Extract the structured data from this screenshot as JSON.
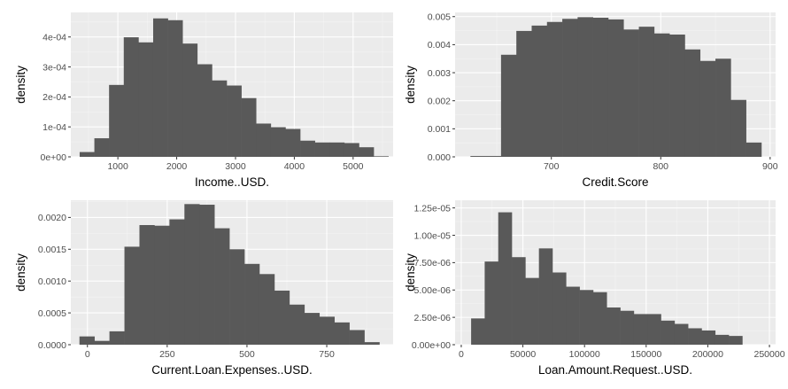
{
  "colors": {
    "panel_bg": "#ebebeb",
    "grid_major": "#ffffff",
    "grid_minor": "#f4f4f4",
    "bar_fill": "#595959",
    "tick_text": "#4d4d4d",
    "axis_title": "#000000"
  },
  "chart_data": [
    {
      "type": "histogram",
      "xlabel": "Income..USD.",
      "ylabel": "density",
      "xlim": [
        200,
        5680
      ],
      "ylim": [
        0,
        0.000482
      ],
      "xticks": [
        1000,
        2000,
        3000,
        4000,
        5000
      ],
      "xtick_labels": [
        "1000",
        "2000",
        "3000",
        "4000",
        "5000"
      ],
      "yticks": [
        0,
        0.0001,
        0.0002,
        0.0003,
        0.0004
      ],
      "ytick_labels": [
        "0e+00",
        "1e-04",
        "2e-04",
        "3e-04",
        "4e-04"
      ],
      "bin_edges": [
        350,
        600,
        850,
        1100,
        1350,
        1600,
        1850,
        2100,
        2350,
        2600,
        2850,
        3100,
        3350,
        3600,
        3850,
        4100,
        4350,
        4600,
        4850,
        5100,
        5350,
        5600
      ],
      "values": [
        1.6e-05,
        6.2e-05,
        0.00024,
        0.000399,
        0.000382,
        0.000462,
        0.000456,
        0.000378,
        0.000309,
        0.000255,
        0.000238,
        0.000196,
        0.000111,
        9.9e-05,
        9.3e-05,
        5.4e-05,
        4.8e-05,
        4.8e-05,
        4.6e-05,
        3.2e-05,
        2e-06
      ]
    },
    {
      "type": "histogram",
      "xlabel": "Credit.Score",
      "ylabel": "density",
      "xlim": [
        612,
        905
      ],
      "ylim": [
        0,
        0.00515
      ],
      "xticks": [
        700,
        800,
        900
      ],
      "xtick_labels": [
        "700",
        "800",
        "900"
      ],
      "yticks": [
        0,
        0.001,
        0.002,
        0.003,
        0.004,
        0.005
      ],
      "ytick_labels": [
        "0.000",
        "0.001",
        "0.002",
        "0.003",
        "0.004",
        "0.005"
      ],
      "bin_edges": [
        626,
        640,
        654,
        668,
        682,
        696,
        710,
        724,
        738,
        752,
        766,
        780,
        794,
        808,
        822,
        836,
        850,
        864,
        878,
        892
      ],
      "values": [
        3e-05,
        3e-05,
        0.00364,
        0.00449,
        0.00468,
        0.00481,
        0.00492,
        0.00498,
        0.00496,
        0.0049,
        0.00454,
        0.00464,
        0.0044,
        0.00436,
        0.00383,
        0.00342,
        0.0035,
        0.00203,
        0.00051
      ]
    },
    {
      "type": "histogram",
      "xlabel": "Current.Loan.Expenses..USD.",
      "ylabel": "density",
      "xlim": [
        -52,
        958
      ],
      "ylim": [
        0,
        0.00227
      ],
      "xticks": [
        0,
        250,
        500,
        750
      ],
      "xtick_labels": [
        "0",
        "250",
        "500",
        "750"
      ],
      "yticks": [
        0,
        0.0005,
        0.001,
        0.0015,
        0.002
      ],
      "ytick_labels": [
        "0.0000",
        "0.0005",
        "0.0010",
        "0.0015",
        "0.0020"
      ],
      "bin_edges": [
        -25,
        22,
        69,
        116,
        163,
        210,
        257,
        304,
        351,
        398,
        445,
        492,
        539,
        586,
        633,
        680,
        727,
        774,
        821,
        868,
        915
      ],
      "values": [
        0.00013,
        6e-05,
        0.00021,
        0.00154,
        0.00188,
        0.00187,
        0.00197,
        0.00221,
        0.0022,
        0.00183,
        0.0015,
        0.00127,
        0.00111,
        0.00085,
        0.00063,
        0.0005,
        0.00044,
        0.00035,
        0.00023,
        4e-05
      ]
    },
    {
      "type": "histogram",
      "xlabel": "Loan.Amount.Request..USD.",
      "ylabel": "density",
      "xlim": [
        -5000,
        255000
      ],
      "ylim": [
        0,
        1.32e-05
      ],
      "xticks": [
        0,
        50000,
        100000,
        150000,
        200000,
        250000
      ],
      "xtick_labels": [
        "0",
        "50000",
        "100000",
        "150000",
        "200000",
        "250000"
      ],
      "yticks": [
        0,
        2.5e-06,
        5e-06,
        7.5e-06,
        1e-05,
        1.25e-05
      ],
      "ytick_labels": [
        "0.00e+00",
        "2.50e-06",
        "5.00e-06",
        "7.50e-06",
        "1.00e-05",
        "1.25e-05"
      ],
      "bin_edges": [
        8000,
        19000,
        30000,
        41000,
        52000,
        63000,
        74000,
        85000,
        96000,
        107000,
        118000,
        129000,
        140000,
        151000,
        162000,
        173000,
        184000,
        195000,
        206000,
        217000,
        228000
      ],
      "values": [
        2.4e-06,
        7.6e-06,
        1.21e-05,
        8e-06,
        6.1e-06,
        8.8e-06,
        6.6e-06,
        5.3e-06,
        5e-06,
        4.8e-06,
        3.4e-06,
        3.1e-06,
        2.8e-06,
        2.8e-06,
        2.2e-06,
        1.9e-06,
        1.5e-06,
        1.3e-06,
        9e-07,
        8e-07
      ]
    }
  ]
}
